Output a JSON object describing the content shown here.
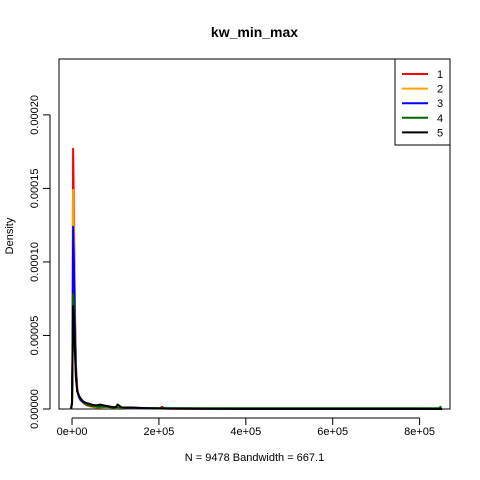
{
  "chart_data": {
    "type": "line",
    "title": "kw_min_max",
    "xlabel": "N = 9478   Bandwidth = 667.1",
    "ylabel": "Density",
    "xlim": [
      -30000,
      870000
    ],
    "ylim": [
      0,
      0.000238
    ],
    "x_ticks": [
      0,
      200000,
      400000,
      600000,
      800000
    ],
    "x_tick_labels": [
      "0e+00",
      "2e+05",
      "4e+05",
      "6e+05",
      "8e+05"
    ],
    "y_ticks": [
      0,
      5e-05,
      0.0001,
      0.00015,
      0.0002
    ],
    "y_tick_labels": [
      "0.00000",
      "0.00005",
      "0.00010",
      "0.00015",
      "0.00020"
    ],
    "legend_position": "top-right",
    "series": [
      {
        "name": "1",
        "color": "#ff0000",
        "x": [
          -2000,
          0,
          1000,
          2500,
          4500,
          6500,
          9000,
          12000,
          16000,
          20000,
          26000,
          34000,
          45000,
          60000,
          80000,
          100000,
          140000,
          200000,
          208000,
          212000,
          230000,
          300000,
          400000,
          500000,
          600000,
          700000,
          800000,
          850000
        ],
        "y": [
          5e-07,
          5e-06,
          4e-05,
          0.000177,
          0.00013,
          7e-05,
          3e-05,
          1.4e-05,
          8e-06,
          6e-06,
          4e-06,
          2.5e-06,
          1.5e-06,
          1e-06,
          2e-06,
          8e-07,
          5e-07,
          3e-07,
          1.5e-06,
          3e-07,
          2e-07,
          2e-07,
          1e-07,
          1e-07,
          1e-07,
          1e-07,
          1e-07,
          0
        ]
      },
      {
        "name": "2",
        "color": "#ffa500",
        "x": [
          -2000,
          0,
          1000,
          2500,
          4500,
          6500,
          9000,
          12000,
          16000,
          20000,
          26000,
          34000,
          45000,
          60000,
          80000,
          100000,
          140000,
          200000,
          300000,
          400000,
          500000,
          600000,
          700000,
          800000,
          850000
        ],
        "y": [
          5e-07,
          4e-06,
          3e-05,
          0.000149,
          0.000115,
          6.5e-05,
          2.8e-05,
          1.3e-05,
          8e-06,
          6e-06,
          4e-06,
          3e-06,
          1.5e-06,
          1e-06,
          1.5e-06,
          8e-07,
          5e-07,
          3e-07,
          2e-07,
          1e-07,
          1e-07,
          1e-07,
          1e-07,
          1e-07,
          0
        ]
      },
      {
        "name": "3",
        "color": "#0000ff",
        "x": [
          -2000,
          0,
          1000,
          2500,
          4500,
          6500,
          9000,
          12000,
          16000,
          20000,
          26000,
          34000,
          45000,
          60000,
          80000,
          100000,
          140000,
          200000,
          300000,
          400000,
          500000,
          600000,
          700000,
          800000,
          850000
        ],
        "y": [
          5e-07,
          4e-06,
          3e-05,
          0.000124,
          0.0001,
          6e-05,
          2.6e-05,
          1.2e-05,
          8e-06,
          6e-06,
          4.5e-06,
          3e-06,
          2e-06,
          1.5e-06,
          2e-06,
          1e-06,
          5e-07,
          3e-07,
          2e-07,
          1e-07,
          1e-07,
          1e-07,
          1e-07,
          1e-07,
          0
        ]
      },
      {
        "name": "4",
        "color": "#006400",
        "x": [
          -2000,
          0,
          1000,
          2500,
          4500,
          6500,
          9000,
          12000,
          16000,
          20000,
          26000,
          34000,
          45000,
          60000,
          80000,
          100000,
          140000,
          200000,
          300000,
          400000,
          500000,
          600000,
          700000,
          800000,
          845000,
          848000,
          850000
        ],
        "y": [
          5e-07,
          4e-06,
          3e-05,
          7.8e-05,
          7e-05,
          4.5e-05,
          2.2e-05,
          1.2e-05,
          9e-06,
          7e-06,
          5e-06,
          3e-06,
          2e-06,
          1.5e-06,
          1.5e-06,
          1e-06,
          8e-07,
          6e-07,
          5e-07,
          5e-07,
          5e-07,
          5e-07,
          5e-07,
          5e-07,
          6e-07,
          1.5e-06,
          0
        ]
      },
      {
        "name": "5",
        "color": "#000000",
        "x": [
          -2000,
          0,
          1000,
          2500,
          4500,
          6500,
          9000,
          12000,
          16000,
          20000,
          26000,
          34000,
          45000,
          55000,
          65000,
          80000,
          100000,
          105000,
          115000,
          140000,
          170000,
          200000,
          300000,
          400000,
          500000,
          600000,
          700000,
          800000,
          850000
        ],
        "y": [
          5e-07,
          4e-06,
          3e-05,
          7e-05,
          6.2e-05,
          4e-05,
          2.1e-05,
          1.2e-05,
          9e-06,
          7e-06,
          5e-06,
          4e-06,
          3e-06,
          2.5e-06,
          3e-06,
          2e-06,
          1e-06,
          3e-06,
          1e-06,
          1e-06,
          5e-07,
          3e-07,
          2e-07,
          1e-07,
          1e-07,
          1e-07,
          1e-07,
          1e-07,
          0
        ]
      }
    ]
  }
}
